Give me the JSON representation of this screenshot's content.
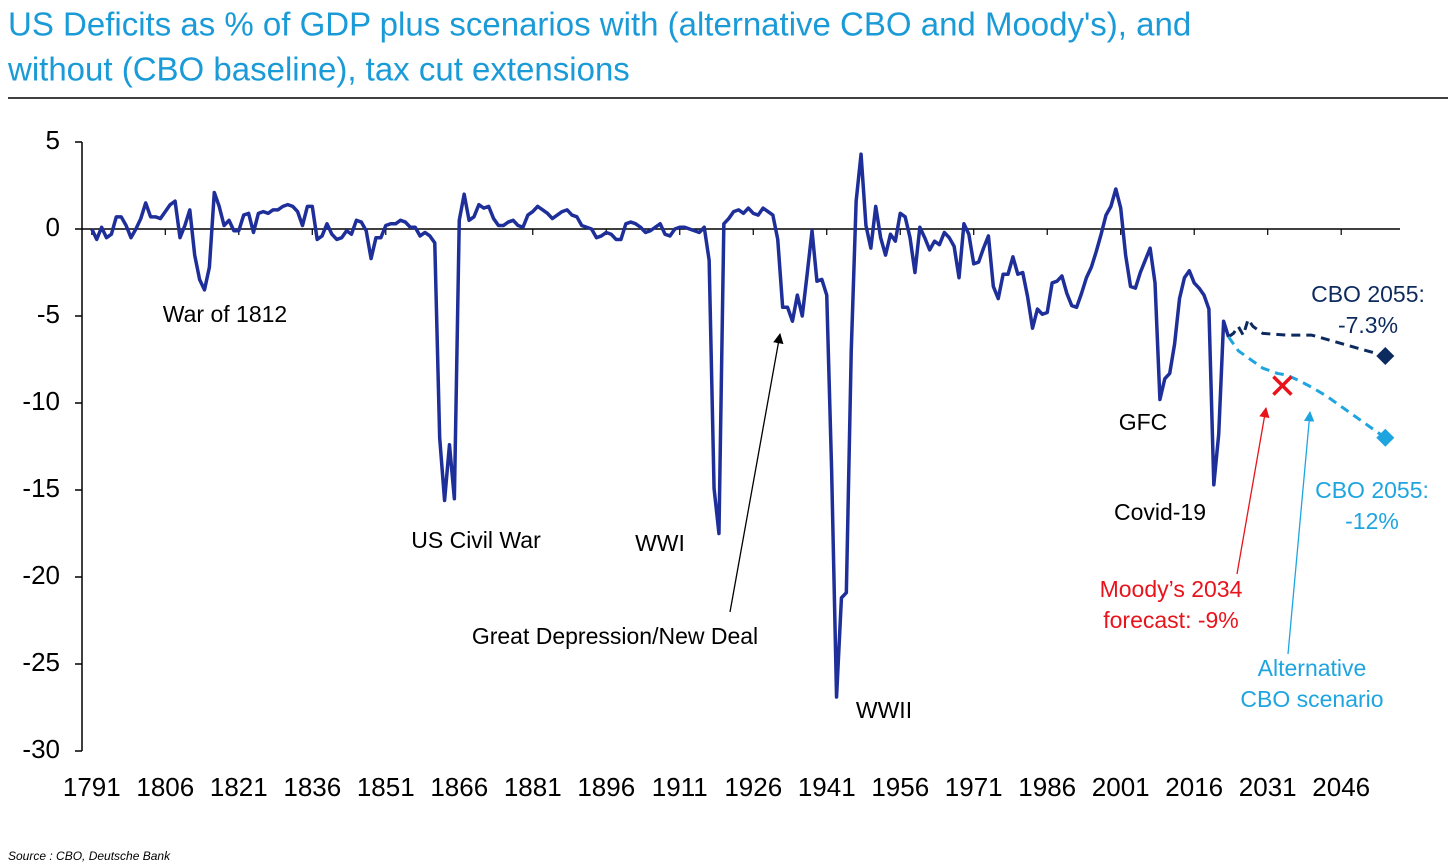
{
  "chart_data": {
    "type": "line",
    "title": [
      "US Deficits as % of GDP plus scenarios with (alternative CBO and Moody's), and",
      "without (CBO baseline), tax cut extensions"
    ],
    "source": "Source : CBO, Deutsche Bank",
    "xlim": [
      1789,
      2058
    ],
    "ylim": [
      -30,
      5
    ],
    "xticks": [
      1791,
      1806,
      1821,
      1836,
      1851,
      1866,
      1881,
      1896,
      1911,
      1926,
      1941,
      1956,
      1971,
      1986,
      2001,
      2016,
      2031,
      2046
    ],
    "yticks": [
      5,
      0,
      -5,
      -10,
      -15,
      -20,
      -25,
      -30
    ],
    "series": [
      {
        "color": "#1f2f9a",
        "style": "solid",
        "x": [
          1791,
          1792,
          1793,
          1794,
          1795,
          1796,
          1797,
          1798,
          1799,
          1800,
          1801,
          1802,
          1803,
          1804,
          1805,
          1806,
          1807,
          1808,
          1809,
          1810,
          1811,
          1812,
          1813,
          1814,
          1815,
          1816,
          1817,
          1818,
          1819,
          1820,
          1821,
          1822,
          1823,
          1824,
          1825,
          1826,
          1827,
          1828,
          1829,
          1830,
          1831,
          1832,
          1833,
          1834,
          1835,
          1836,
          1837,
          1838,
          1839,
          1840,
          1841,
          1842,
          1843,
          1844,
          1845,
          1846,
          1847,
          1848,
          1849,
          1850,
          1851,
          1852,
          1853,
          1854,
          1855,
          1856,
          1857,
          1858,
          1859,
          1860,
          1861,
          1862,
          1863,
          1864,
          1865,
          1866,
          1867,
          1868,
          1869,
          1870,
          1871,
          1872,
          1873,
          1874,
          1875,
          1876,
          1877,
          1878,
          1879,
          1880,
          1881,
          1882,
          1883,
          1884,
          1885,
          1886,
          1887,
          1888,
          1889,
          1890,
          1891,
          1892,
          1893,
          1894,
          1895,
          1896,
          1897,
          1898,
          1899,
          1900,
          1901,
          1902,
          1903,
          1904,
          1905,
          1906,
          1907,
          1908,
          1909,
          1910,
          1911,
          1912,
          1913,
          1914,
          1915,
          1916,
          1917,
          1918,
          1919,
          1920,
          1921,
          1922,
          1923,
          1924,
          1925,
          1926,
          1927,
          1928,
          1929,
          1930,
          1931,
          1932,
          1933,
          1934,
          1935,
          1936,
          1937,
          1938,
          1939,
          1940,
          1941,
          1942,
          1943,
          1944,
          1945,
          1946,
          1947,
          1948,
          1949,
          1950,
          1951,
          1952,
          1953,
          1954,
          1955,
          1956,
          1957,
          1958,
          1959,
          1960,
          1961,
          1962,
          1963,
          1964,
          1965,
          1966,
          1967,
          1968,
          1969,
          1970,
          1971,
          1972,
          1973,
          1974,
          1975,
          1976,
          1977,
          1978,
          1979,
          1980,
          1981,
          1982,
          1983,
          1984,
          1985,
          1986,
          1987,
          1988,
          1989,
          1990,
          1991,
          1992,
          1993,
          1994,
          1995,
          1996,
          1997,
          1998,
          1999,
          2000,
          2001,
          2002,
          2003,
          2004,
          2005,
          2006,
          2007,
          2008,
          2009,
          2010,
          2011,
          2012,
          2013,
          2014,
          2015,
          2016,
          2017,
          2018,
          2019,
          2020,
          2021,
          2022,
          2023
        ],
        "values": [
          0,
          -0.6,
          0.1,
          -0.5,
          -0.3,
          0.7,
          0.7,
          0.2,
          -0.5,
          0,
          0.6,
          1.5,
          0.7,
          0.7,
          0.6,
          1.0,
          1.4,
          1.6,
          -0.5,
          0.2,
          1.1,
          -1.5,
          -2.9,
          -3.5,
          -2.2,
          2.1,
          1.3,
          0.2,
          0.5,
          -0.1,
          -0.1,
          0.8,
          0.9,
          -0.2,
          0.9,
          1.0,
          0.9,
          1.1,
          1.1,
          1.3,
          1.4,
          1.3,
          1.0,
          0.2,
          1.3,
          1.3,
          -0.6,
          -0.4,
          0.3,
          -0.3,
          -0.6,
          -0.5,
          -0.1,
          -0.3,
          0.5,
          0.4,
          -0.1,
          -1.7,
          -0.5,
          -0.5,
          0.2,
          0.3,
          0.3,
          0.5,
          0.4,
          0.1,
          0.1,
          -0.4,
          -0.2,
          -0.4,
          -0.8,
          -12,
          -15.6,
          -12.4,
          -15.5,
          0.5,
          2.0,
          0.5,
          0.7,
          1.4,
          1.2,
          1.3,
          0.6,
          0.2,
          0.2,
          0.4,
          0.5,
          0.2,
          0.1,
          0.8,
          1.0,
          1.3,
          1.1,
          0.9,
          0.6,
          0.8,
          1.0,
          1.1,
          0.8,
          0.7,
          0.2,
          0.1,
          0.0,
          -0.5,
          -0.4,
          -0.2,
          -0.3,
          -0.6,
          -0.6,
          0.3,
          0.4,
          0.3,
          0.1,
          -0.2,
          -0.1,
          0.1,
          0.3,
          -0.3,
          -0.4,
          0,
          0.1,
          0.1,
          0,
          -0.1,
          -0.2,
          0.1,
          -1.8,
          -14.9,
          -17.5,
          0.3,
          0.6,
          1.0,
          1.1,
          0.9,
          1.2,
          0.9,
          0.8,
          1.2,
          1.0,
          0.8,
          -0.6,
          -4.5,
          -4.5,
          -5.3,
          -3.8,
          -5.0,
          -2.6,
          -0.1,
          -3.0,
          -2.9,
          -3.8,
          -13.9,
          -26.9,
          -21.2,
          -20.9,
          -7.0,
          1.6,
          4.3,
          0.2,
          -1.1,
          1.3,
          -0.5,
          -1.5,
          -0.3,
          -0.7,
          0.9,
          0.7,
          -0.5,
          -2.5,
          0.1,
          -0.5,
          -1.2,
          -0.7,
          -0.9,
          -0.2,
          -0.5,
          -1.0,
          -2.8,
          0.3,
          -0.3,
          -2.0,
          -1.9,
          -1.1,
          -0.4,
          -3.3,
          -4.0,
          -2.6,
          -2.6,
          -1.6,
          -2.6,
          -2.5,
          -3.9,
          -5.7,
          -4.6,
          -4.9,
          -4.8,
          -3.1,
          -3.0,
          -2.7,
          -3.7,
          -4.4,
          -4.5,
          -3.7,
          -2.8,
          -2.2,
          -1.3,
          -0.3,
          0.8,
          1.3,
          2.3,
          1.2,
          -1.5,
          -3.3,
          -3.4,
          -2.5,
          -1.8,
          -1.1,
          -3.1,
          -9.8,
          -8.6,
          -8.3,
          -6.6,
          -4.0,
          -2.8,
          -2.4,
          -3.1,
          -3.4,
          -3.8,
          -4.6,
          -14.7,
          -11.8,
          -5.3,
          -6.2
        ]
      },
      {
        "color": "#0d2a5e",
        "style": "dashed",
        "end_marker": "diamond",
        "x": [
          2023,
          2024,
          2025,
          2026,
          2027,
          2028,
          2030,
          2035,
          2040,
          2045,
          2050,
          2055
        ],
        "values": [
          -6.2,
          -6.0,
          -5.6,
          -6.1,
          -5.2,
          -5.6,
          -6.0,
          -6.1,
          -6.1,
          -6.5,
          -6.9,
          -7.3
        ]
      },
      {
        "color": "#1ea5e0",
        "style": "dashed",
        "end_marker": "diamond",
        "x": [
          2023,
          2025,
          2028,
          2030,
          2033,
          2035,
          2038,
          2040,
          2043,
          2045,
          2048,
          2050,
          2053,
          2055
        ],
        "values": [
          -6.2,
          -7.0,
          -7.6,
          -8.0,
          -8.3,
          -8.4,
          -8.8,
          -9.1,
          -9.6,
          -10.0,
          -10.6,
          -11.0,
          -11.6,
          -12.0
        ]
      }
    ],
    "points": [
      {
        "x": 2034,
        "y": -9,
        "color": "#e8141c",
        "marker": "x"
      }
    ],
    "annotations": [
      {
        "lines": [
          "War of 1812"
        ],
        "color": "#000000"
      },
      {
        "lines": [
          "US Civil War"
        ],
        "color": "#000000"
      },
      {
        "lines": [
          "WWI"
        ],
        "color": "#000000"
      },
      {
        "lines": [
          "Great Depression/New Deal"
        ],
        "color": "#000000"
      },
      {
        "lines": [
          "WWII"
        ],
        "color": "#000000"
      },
      {
        "lines": [
          "GFC"
        ],
        "color": "#000000"
      },
      {
        "lines": [
          "Covid-19"
        ],
        "color": "#000000"
      },
      {
        "lines": [
          "CBO 2055:",
          "-7.3%"
        ],
        "color": "#0d2a5e"
      },
      {
        "lines": [
          "CBO 2055:",
          "-12%"
        ],
        "color": "#1ea5e0"
      },
      {
        "lines": [
          "Moody’s 2034",
          "forecast: -9%"
        ],
        "color": "#e8141c"
      },
      {
        "lines": [
          "Alternative",
          "CBO scenario"
        ],
        "color": "#1ea5e0"
      }
    ]
  }
}
